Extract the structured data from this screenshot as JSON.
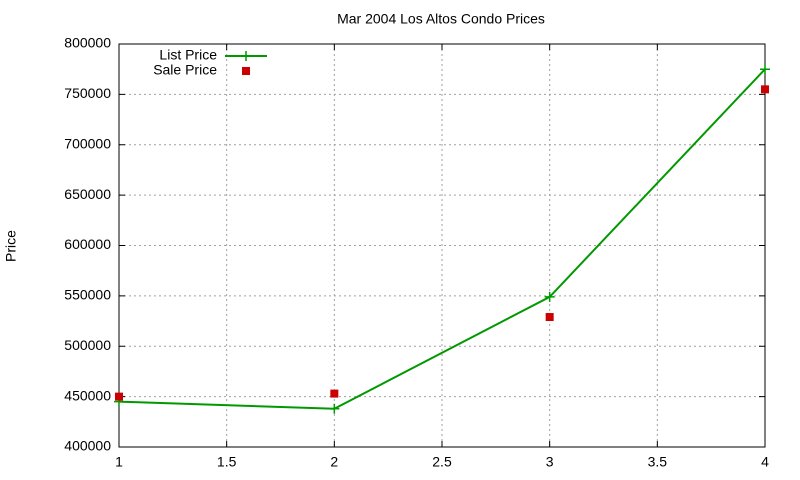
{
  "chart_data": {
    "type": "line",
    "title": "Mar 2004 Los Altos Condo Prices",
    "y_label": "Price",
    "x": [
      1,
      2,
      3,
      4
    ],
    "series": [
      {
        "name": "List Price",
        "color": "#009900",
        "style": "linespoints",
        "marker": "plus",
        "values": [
          445000,
          438000,
          549000,
          775000
        ]
      },
      {
        "name": "Sale Price",
        "color": "#cc0000",
        "style": "points",
        "marker": "square",
        "values": [
          450000,
          453000,
          529000,
          755000
        ]
      }
    ],
    "xlim": [
      1,
      4
    ],
    "xticks": [
      1,
      1.5,
      2,
      2.5,
      3,
      3.5,
      4
    ],
    "ylim": [
      400000,
      800000
    ],
    "yticks": [
      400000,
      450000,
      500000,
      550000,
      600000,
      650000,
      700000,
      750000,
      800000
    ],
    "grid": true,
    "legend": "top-left"
  }
}
